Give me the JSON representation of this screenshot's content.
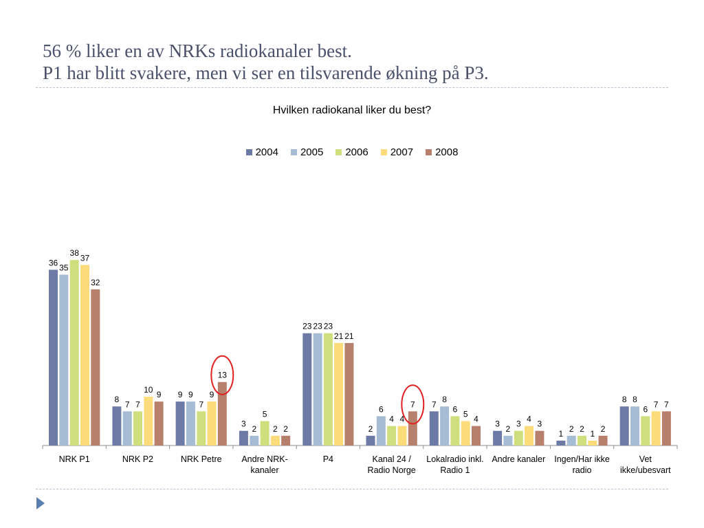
{
  "slide": {
    "title_line1": "56 % liker en av NRKs radiokanaler best.",
    "title_line2": "P1 har blitt svakere, men vi ser en tilsvarende økning på P3."
  },
  "colors": {
    "2004": "#6e7aa6",
    "2005": "#a6bcd4",
    "2006": "#cfdf7d",
    "2007": "#fcdb7a",
    "2008": "#b7806d",
    "highlight": "#e02020",
    "rule": "#b9c3cf",
    "nav_arrow": "#5b7fb0"
  },
  "icons": {
    "nav": "play-triangle-icon"
  },
  "chart_data": {
    "type": "bar",
    "title": "Hvilken radiokanal liker du best?",
    "xlabel": "",
    "ylabel": "",
    "ylim": [
      0,
      40
    ],
    "grid": false,
    "legend_position": "top",
    "categories": [
      "NRK P1",
      "NRK P2",
      "NRK Petre",
      "Andre NRK-\nkanaler",
      "P4",
      "Kanal 24 /\nRadio Norge",
      "Lokalradio inkl.\nRadio 1",
      "Andre kanaler",
      "Ingen/Har ikke\nradio",
      "Vet\nikke/ubesvart"
    ],
    "series": [
      {
        "name": "2004",
        "values": [
          36,
          8,
          9,
          3,
          23,
          2,
          7,
          3,
          1,
          8
        ]
      },
      {
        "name": "2005",
        "values": [
          35,
          7,
          9,
          2,
          23,
          6,
          8,
          2,
          2,
          8
        ]
      },
      {
        "name": "2006",
        "values": [
          38,
          7,
          7,
          5,
          23,
          4,
          6,
          3,
          2,
          6
        ]
      },
      {
        "name": "2007",
        "values": [
          37,
          10,
          9,
          2,
          21,
          4,
          5,
          4,
          1,
          7
        ]
      },
      {
        "name": "2008",
        "values": [
          32,
          9,
          13,
          2,
          21,
          7,
          4,
          3,
          2,
          7
        ]
      }
    ],
    "annotations": [
      {
        "type": "circle",
        "category": "NRK Petre",
        "series": "2008"
      },
      {
        "type": "circle",
        "category": "Kanal 24 /\nRadio Norge",
        "series": "2008"
      }
    ]
  }
}
